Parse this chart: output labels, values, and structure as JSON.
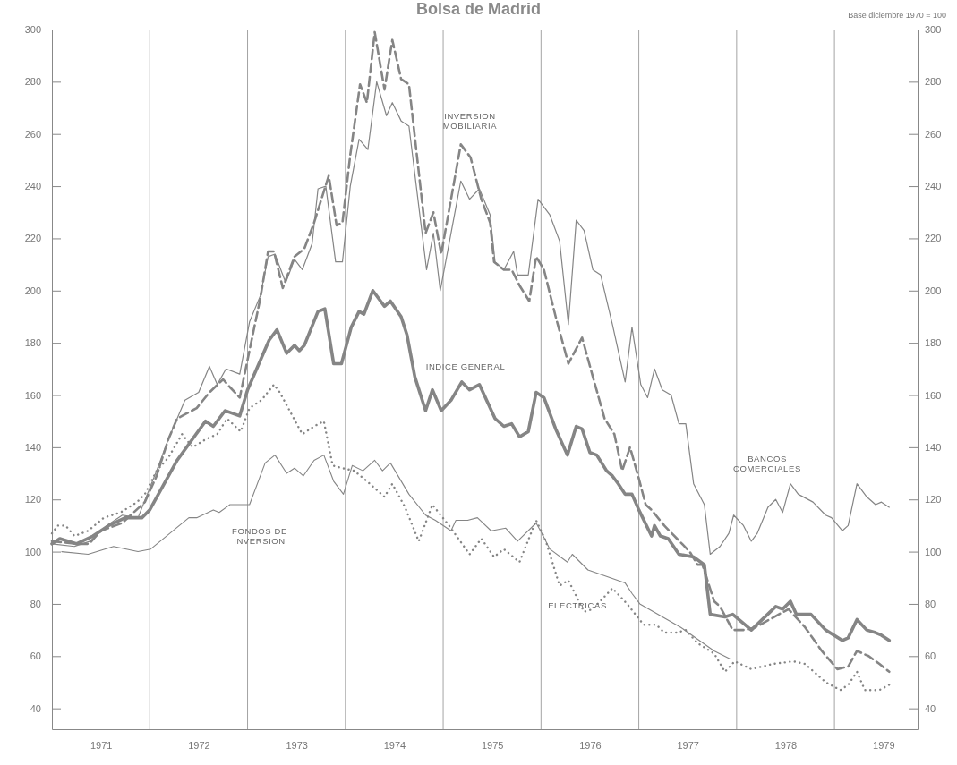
{
  "chart_data": {
    "type": "line",
    "title": "Bolsa de Madrid",
    "annotations": [
      "Base diciembre 1970 = 100"
    ],
    "xlim": [
      1971,
      1979.85
    ],
    "xticks": [
      {
        "value": 1971.5,
        "label": "1971"
      },
      {
        "value": 1972,
        "label": null
      },
      {
        "value": 1972.5,
        "label": "1972"
      },
      {
        "value": 1973,
        "label": null
      },
      {
        "value": 1973.5,
        "label": "1973"
      },
      {
        "value": 1974,
        "label": null
      },
      {
        "value": 1974.5,
        "label": "1974"
      },
      {
        "value": 1975,
        "label": null
      },
      {
        "value": 1975.5,
        "label": "1975"
      },
      {
        "value": 1976,
        "label": null
      },
      {
        "value": 1976.5,
        "label": "1976"
      },
      {
        "value": 1977,
        "label": null
      },
      {
        "value": 1977.5,
        "label": "1977"
      },
      {
        "value": 1978,
        "label": null
      },
      {
        "value": 1978.5,
        "label": "1978"
      },
      {
        "value": 1979,
        "label": null
      },
      {
        "value": 1979.5,
        "label": "1979"
      }
    ],
    "ylim": [
      32,
      300
    ],
    "yticks": [
      40,
      60,
      80,
      100,
      120,
      140,
      160,
      180,
      200,
      220,
      240,
      260,
      280,
      300
    ],
    "y2lim": [
      32,
      300
    ],
    "y2ticks": [
      40,
      60,
      80,
      100,
      120,
      140,
      160,
      180,
      200,
      220,
      240,
      260,
      280,
      300
    ],
    "grid": "x",
    "series": [
      {
        "name": "INDICE GENERAL",
        "color": "#858585",
        "line_style": "solid",
        "x": [
          1971.0,
          1971.08,
          1971.25,
          1971.42,
          1971.58,
          1971.75,
          1971.92,
          1972.0,
          1972.28,
          1972.57,
          1972.65,
          1972.77,
          1972.92,
          1973.0,
          1973.22,
          1973.3,
          1973.4,
          1973.48,
          1973.53,
          1973.58,
          1973.72,
          1973.79,
          1973.88,
          1973.96,
          1974.06,
          1974.14,
          1974.19,
          1974.28,
          1974.4,
          1974.46,
          1974.57,
          1974.63,
          1974.71,
          1974.82,
          1974.89,
          1974.98,
          1975.08,
          1975.19,
          1975.27,
          1975.37,
          1975.53,
          1975.62,
          1975.7,
          1975.78,
          1975.87,
          1975.95,
          1976.03,
          1976.15,
          1976.27,
          1976.36,
          1976.42,
          1976.5,
          1976.57,
          1976.67,
          1976.73,
          1976.79,
          1976.86,
          1976.93,
          1977.0,
          1977.13,
          1977.16,
          1977.22,
          1977.3,
          1977.41,
          1977.56,
          1977.67,
          1977.73,
          1977.88,
          1977.96,
          1978.15,
          1978.4,
          1978.47,
          1978.55,
          1978.61,
          1978.76,
          1978.91,
          1979.08,
          1979.14,
          1979.23,
          1979.33,
          1979.42,
          1979.48,
          1979.56
        ],
        "values": [
          103,
          105,
          103,
          106,
          110,
          113,
          113,
          116,
          135,
          150,
          148,
          154,
          152,
          162,
          181,
          185,
          176,
          179,
          177,
          179,
          192,
          193,
          172,
          172,
          186,
          192,
          191,
          200,
          194,
          196,
          190,
          183,
          167,
          154,
          162,
          154,
          158,
          165,
          162,
          164,
          151,
          148,
          149,
          144,
          146,
          161,
          159,
          147,
          137,
          148,
          147,
          138,
          137,
          131,
          129,
          126,
          122,
          122,
          116,
          106,
          110,
          106,
          105,
          99,
          98,
          95,
          76,
          75,
          76,
          70,
          79,
          78,
          81,
          76,
          76,
          70,
          66,
          67,
          74,
          70,
          69,
          68,
          66
        ]
      },
      {
        "name": "INVERSION MOBILIARIA",
        "color": "#858585",
        "line_style": "dashed",
        "x": [
          1971.0,
          1971.25,
          1971.38,
          1971.5,
          1971.72,
          1971.95,
          1972.07,
          1972.19,
          1972.28,
          1972.38,
          1972.48,
          1972.61,
          1972.75,
          1972.82,
          1972.92,
          1973.13,
          1973.21,
          1973.27,
          1973.36,
          1973.48,
          1973.58,
          1973.68,
          1973.78,
          1973.83,
          1973.91,
          1973.97,
          1974.05,
          1974.15,
          1974.22,
          1974.3,
          1974.4,
          1974.48,
          1974.57,
          1974.65,
          1974.82,
          1974.9,
          1974.98,
          1975.18,
          1975.28,
          1975.39,
          1975.48,
          1975.52,
          1975.62,
          1975.7,
          1975.78,
          1975.88,
          1975.95,
          1976.03,
          1976.15,
          1976.28,
          1976.42,
          1976.53,
          1976.65,
          1976.75,
          1976.83,
          1976.91,
          1977.0,
          1977.07,
          1977.13,
          1977.26,
          1977.39,
          1977.52,
          1977.6,
          1977.65,
          1977.77,
          1977.83,
          1977.96,
          1978.08,
          1978.19,
          1978.53,
          1978.7,
          1978.87,
          1979.03,
          1979.14,
          1979.23,
          1979.35,
          1979.46,
          1979.56
        ],
        "values": [
          104,
          103,
          103,
          108,
          111,
          119,
          129,
          143,
          151,
          153,
          155,
          161,
          166,
          163,
          159,
          197,
          215,
          215,
          201,
          213,
          216,
          226,
          238,
          244,
          225,
          226,
          252,
          279,
          272,
          299,
          277,
          296,
          281,
          279,
          222,
          230,
          214,
          256,
          251,
          235,
          226,
          211,
          208,
          208,
          202,
          196,
          213,
          208,
          190,
          172,
          182,
          167,
          151,
          145,
          131,
          140,
          128,
          118,
          116,
          110,
          105,
          100,
          95,
          95,
          81,
          79,
          70,
          70,
          71,
          78,
          71,
          62,
          55,
          56,
          62,
          60,
          57,
          54
        ]
      },
      {
        "name": "BANCOS COMERCIALES",
        "color": "#858585",
        "line_style": "solid",
        "x": [
          1971.0,
          1971.23,
          1971.39,
          1971.56,
          1971.72,
          1971.88,
          1972.07,
          1972.19,
          1972.36,
          1972.5,
          1972.61,
          1972.69,
          1972.78,
          1972.92,
          1973.02,
          1973.13,
          1973.21,
          1973.28,
          1973.39,
          1973.48,
          1973.56,
          1973.66,
          1973.72,
          1973.8,
          1973.9,
          1973.97,
          1974.05,
          1974.14,
          1974.23,
          1974.32,
          1974.42,
          1974.48,
          1974.57,
          1974.65,
          1974.83,
          1974.9,
          1974.97,
          1975.18,
          1975.27,
          1975.37,
          1975.48,
          1975.53,
          1975.62,
          1975.72,
          1975.76,
          1975.87,
          1975.97,
          1976.09,
          1976.19,
          1976.28,
          1976.36,
          1976.44,
          1976.53,
          1976.61,
          1976.73,
          1976.86,
          1976.93,
          1977.02,
          1977.09,
          1977.16,
          1977.24,
          1977.33,
          1977.41,
          1977.48,
          1977.56,
          1977.67,
          1977.73,
          1977.83,
          1977.92,
          1977.97,
          1978.07,
          1978.15,
          1978.21,
          1978.32,
          1978.4,
          1978.47,
          1978.55,
          1978.63,
          1978.78,
          1978.91,
          1978.97,
          1979.08,
          1979.14,
          1979.23,
          1979.33,
          1979.42,
          1979.48,
          1979.56
        ],
        "values": [
          103,
          102,
          104,
          110,
          114,
          113,
          131,
          143,
          158,
          161,
          171,
          164,
          170,
          168,
          188,
          198,
          213,
          214,
          203,
          212,
          208,
          218,
          239,
          240,
          211,
          211,
          240,
          258,
          254,
          280,
          267,
          272,
          265,
          263,
          208,
          222,
          200,
          242,
          235,
          239,
          229,
          211,
          208,
          215,
          206,
          206,
          235,
          229,
          219,
          187,
          227,
          223,
          208,
          206,
          187,
          165,
          186,
          164,
          159,
          170,
          162,
          160,
          149,
          149,
          126,
          118,
          99,
          102,
          107,
          114,
          110,
          104,
          107,
          117,
          120,
          115,
          126,
          122,
          119,
          114,
          113,
          108,
          110,
          126,
          121,
          118,
          119,
          117
        ]
      },
      {
        "name": "FONDOS DE INVERSION",
        "color": "#858585",
        "line_style": "solid",
        "x": [
          1971.1,
          1971.37,
          1971.63,
          1971.88,
          1972.01,
          1972.4,
          1972.48,
          1972.65,
          1972.71,
          1972.82,
          1973.02,
          1973.18,
          1973.28,
          1973.4,
          1973.48,
          1973.57,
          1973.68,
          1973.78,
          1973.88,
          1973.98,
          1974.07,
          1974.18,
          1974.3,
          1974.38,
          1974.46,
          1974.65,
          1974.82,
          1974.92,
          1975.08,
          1975.13,
          1975.25,
          1975.35,
          1975.49,
          1975.64,
          1975.76,
          1975.95,
          1976.01,
          1976.09,
          1976.27,
          1976.32,
          1976.48,
          1976.86,
          1976.93,
          1977.01,
          1977.43,
          1977.77,
          1977.93
        ],
        "values": [
          100,
          99,
          102,
          100,
          101,
          113,
          113,
          116,
          115,
          118,
          118,
          134,
          137,
          130,
          132,
          129,
          135,
          137,
          127,
          122,
          133,
          131,
          135,
          131,
          134,
          122,
          114,
          112,
          108,
          112,
          112,
          113,
          108,
          109,
          104,
          111,
          107,
          101,
          96,
          99,
          93,
          88,
          84,
          80,
          71,
          62,
          59
        ]
      },
      {
        "name": "ELECTRICAS",
        "color": "#858585",
        "line_style": "dotted",
        "x": [
          1971.0,
          1971.06,
          1971.14,
          1971.23,
          1971.37,
          1971.53,
          1971.7,
          1971.87,
          1971.95,
          1972.07,
          1972.19,
          1972.33,
          1972.44,
          1972.57,
          1972.69,
          1972.79,
          1972.93,
          1973.02,
          1973.14,
          1973.27,
          1973.33,
          1973.43,
          1973.56,
          1973.68,
          1973.78,
          1973.87,
          1973.97,
          1974.09,
          1974.22,
          1974.4,
          1974.48,
          1974.61,
          1974.75,
          1974.89,
          1975.06,
          1975.27,
          1975.39,
          1975.52,
          1975.62,
          1975.78,
          1975.95,
          1976.05,
          1976.19,
          1976.28,
          1976.44,
          1976.53,
          1976.73,
          1976.88,
          1977.05,
          1977.18,
          1977.26,
          1977.39,
          1977.48,
          1977.6,
          1977.77,
          1977.88,
          1977.98,
          1978.15,
          1978.37,
          1978.58,
          1978.7,
          1978.91,
          1979.06,
          1979.14,
          1979.23,
          1979.31,
          1979.46,
          1979.56
        ],
        "values": [
          107,
          110,
          110,
          106,
          108,
          113,
          115,
          119,
          122,
          131,
          136,
          145,
          140,
          143,
          145,
          151,
          146,
          155,
          158,
          164,
          161,
          154,
          145,
          148,
          150,
          133,
          132,
          131,
          127,
          121,
          126,
          117,
          104,
          118,
          110,
          99,
          105,
          98,
          101,
          96,
          112,
          104,
          87,
          89,
          77,
          78,
          86,
          80,
          72,
          72,
          69,
          69,
          70,
          65,
          61,
          54,
          58,
          55,
          57,
          58,
          57,
          50,
          47,
          49,
          54,
          47,
          47,
          49
        ]
      }
    ]
  }
}
